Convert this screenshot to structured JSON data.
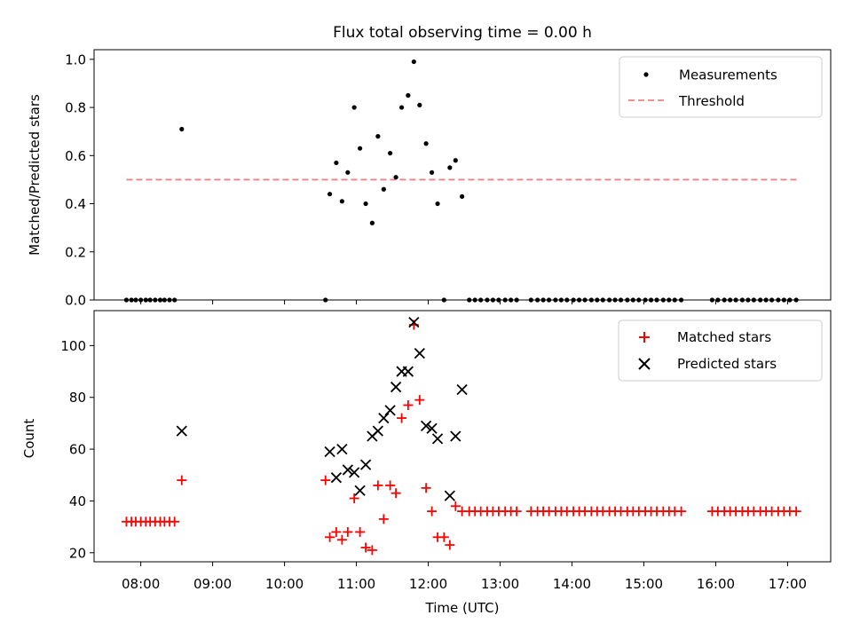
{
  "title": "Flux total observing time = 0.00 h",
  "chart_data": [
    {
      "type": "scatter",
      "ylabel": "Matched/Predicted stars",
      "xlabel": "",
      "xlim": [
        7.35,
        17.6
      ],
      "ylim": [
        0,
        1.04
      ],
      "yticks": [
        0.0,
        0.2,
        0.4,
        0.6,
        0.8,
        1.0
      ],
      "ytick_labels": [
        "0.0",
        "0.2",
        "0.4",
        "0.6",
        "0.8",
        "1.0"
      ],
      "legend_position": "top-right",
      "threshold": {
        "name": "Threshold",
        "value": 0.5,
        "x_range": [
          7.8,
          17.15
        ],
        "color": "#f08080"
      },
      "series": [
        {
          "name": "Measurements",
          "color": "#000000",
          "marker": "dot",
          "x": [
            7.8,
            7.87,
            7.93,
            8.0,
            8.07,
            8.13,
            8.2,
            8.27,
            8.33,
            8.4,
            8.47,
            8.57,
            10.57,
            10.63,
            10.72,
            10.8,
            10.88,
            10.97,
            11.05,
            11.13,
            11.22,
            11.3,
            11.38,
            11.47,
            11.55,
            11.63,
            11.72,
            11.8,
            11.88,
            11.97,
            12.05,
            12.13,
            12.22,
            12.3,
            12.38,
            12.47,
            12.57,
            12.65,
            12.73,
            12.82,
            12.9,
            12.98,
            13.07,
            13.15,
            13.23,
            13.43,
            13.52,
            13.6,
            13.68,
            13.77,
            13.85,
            13.93,
            14.02,
            14.1,
            14.18,
            14.27,
            14.35,
            14.43,
            14.52,
            14.6,
            14.68,
            14.77,
            14.85,
            14.93,
            15.02,
            15.1,
            15.18,
            15.27,
            15.35,
            15.43,
            15.52,
            15.95,
            16.03,
            16.12,
            16.2,
            16.28,
            16.37,
            16.45,
            16.53,
            16.62,
            16.7,
            16.78,
            16.87,
            16.95,
            17.03,
            17.12
          ],
          "y": [
            0,
            0,
            0,
            0,
            0,
            0,
            0,
            0,
            0,
            0,
            0,
            0.71,
            0,
            0.44,
            0.57,
            0.41,
            0.53,
            0.8,
            0.63,
            0.4,
            0.32,
            0.68,
            0.46,
            0.61,
            0.51,
            0.8,
            0.85,
            0.99,
            0.81,
            0.65,
            0.53,
            0.4,
            0,
            0.55,
            0.58,
            0.43,
            0,
            0,
            0,
            0,
            0,
            0,
            0,
            0,
            0,
            0,
            0,
            0,
            0,
            0,
            0,
            0,
            0,
            0,
            0,
            0,
            0,
            0,
            0,
            0,
            0,
            0,
            0,
            0,
            0,
            0,
            0,
            0,
            0,
            0,
            0,
            0,
            0,
            0,
            0,
            0,
            0,
            0,
            0,
            0,
            0,
            0,
            0,
            0,
            0,
            0
          ]
        }
      ]
    },
    {
      "type": "scatter",
      "xlabel": "Time (UTC)",
      "ylabel": "Count",
      "xlim": [
        7.35,
        17.6
      ],
      "ylim": [
        16.5,
        113.5
      ],
      "xticks": [
        8,
        9,
        10,
        11,
        12,
        13,
        14,
        15,
        16,
        17
      ],
      "xtick_labels": [
        "08:00",
        "09:00",
        "10:00",
        "11:00",
        "12:00",
        "13:00",
        "14:00",
        "15:00",
        "16:00",
        "17:00"
      ],
      "yticks": [
        20,
        40,
        60,
        80,
        100
      ],
      "ytick_labels": [
        "20",
        "40",
        "60",
        "80",
        "100"
      ],
      "legend_position": "top-right",
      "series": [
        {
          "name": "Matched stars",
          "color": "#ff0000",
          "marker": "plus",
          "x": [
            7.8,
            7.87,
            7.93,
            8.0,
            8.07,
            8.13,
            8.2,
            8.27,
            8.33,
            8.4,
            8.47,
            8.57,
            10.57,
            10.63,
            10.72,
            10.8,
            10.88,
            10.97,
            11.05,
            11.13,
            11.22,
            11.3,
            11.38,
            11.47,
            11.55,
            11.63,
            11.72,
            11.8,
            11.88,
            11.97,
            12.05,
            12.13,
            12.22,
            12.3,
            12.38,
            12.47,
            12.57,
            12.65,
            12.73,
            12.82,
            12.9,
            12.98,
            13.07,
            13.15,
            13.23,
            13.43,
            13.52,
            13.6,
            13.68,
            13.77,
            13.85,
            13.93,
            14.02,
            14.1,
            14.18,
            14.27,
            14.35,
            14.43,
            14.52,
            14.6,
            14.68,
            14.77,
            14.85,
            14.93,
            15.02,
            15.1,
            15.18,
            15.27,
            15.35,
            15.43,
            15.52,
            15.95,
            16.03,
            16.12,
            16.2,
            16.28,
            16.37,
            16.45,
            16.53,
            16.62,
            16.7,
            16.78,
            16.87,
            16.95,
            17.03,
            17.12
          ],
          "y": [
            32,
            32,
            32,
            32,
            32,
            32,
            32,
            32,
            32,
            32,
            32,
            48,
            48,
            26,
            28,
            25,
            28,
            41,
            28,
            22,
            21,
            46,
            33,
            46,
            43,
            72,
            77,
            108,
            79,
            45,
            36,
            26,
            26,
            23,
            38,
            36,
            36,
            36,
            36,
            36,
            36,
            36,
            36,
            36,
            36,
            36,
            36,
            36,
            36,
            36,
            36,
            36,
            36,
            36,
            36,
            36,
            36,
            36,
            36,
            36,
            36,
            36,
            36,
            36,
            36,
            36,
            36,
            36,
            36,
            36,
            36,
            36,
            36,
            36,
            36,
            36,
            36,
            36,
            36,
            36,
            36,
            36,
            36,
            36,
            36,
            36
          ]
        },
        {
          "name": "Predicted stars",
          "color": "#000000",
          "marker": "x",
          "x": [
            8.57,
            10.63,
            10.72,
            10.8,
            10.88,
            10.97,
            11.05,
            11.13,
            11.22,
            11.3,
            11.38,
            11.47,
            11.55,
            11.63,
            11.72,
            11.8,
            11.88,
            11.97,
            12.05,
            12.13,
            12.3,
            12.38,
            12.47
          ],
          "y": [
            67,
            59,
            49,
            60,
            52,
            51,
            44,
            54,
            65,
            67,
            72,
            75,
            84,
            90,
            90,
            109,
            97,
            69,
            68,
            64,
            42,
            65,
            83
          ]
        }
      ]
    }
  ]
}
